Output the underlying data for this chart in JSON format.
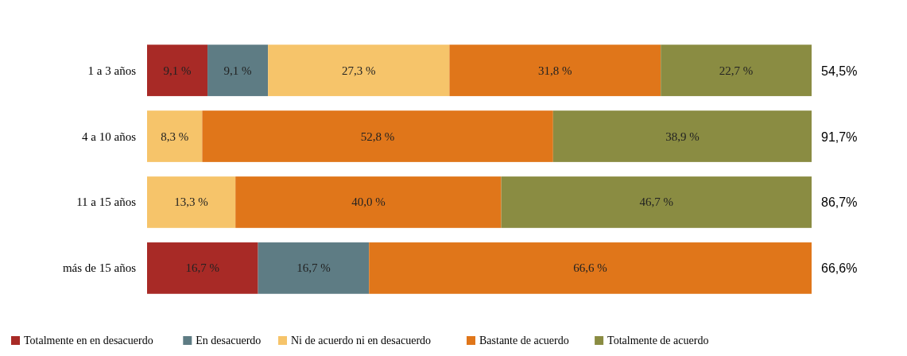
{
  "chart_data": {
    "type": "bar",
    "orientation": "horizontal",
    "stacked": true,
    "categories": [
      "1 a 3 años",
      "4 a 10 años",
      "11 a 15 años",
      "más de 15 años"
    ],
    "series": [
      {
        "name": "Totalmente en en desacuerdo",
        "color": "#a82a26",
        "values": [
          9.1,
          null,
          null,
          16.7
        ],
        "value_labels": [
          "9,1 %",
          null,
          null,
          "16,7 %"
        ]
      },
      {
        "name": "En desacuerdo",
        "color": "#5e7c84",
        "values": [
          9.1,
          null,
          null,
          16.7
        ],
        "value_labels": [
          "9,1 %",
          null,
          null,
          "16,7 %"
        ]
      },
      {
        "name": "Ni de acuerdo ni en desacuerdo",
        "color": "#f6c46a",
        "values": [
          27.3,
          8.3,
          13.3,
          null
        ],
        "value_labels": [
          "27,3 %",
          "8,3 %",
          "13,3 %",
          null
        ]
      },
      {
        "name": "Bastante de acuerdo",
        "color": "#e0761a",
        "values": [
          31.8,
          52.8,
          40.0,
          66.6
        ],
        "value_labels": [
          "31,8 %",
          "52,8 %",
          "40,0 %",
          "66,6 %"
        ]
      },
      {
        "name": "Totalmente de acuerdo",
        "color": "#8a8c42",
        "values": [
          22.7,
          38.9,
          46.7,
          null
        ],
        "value_labels": [
          "22,7 %",
          "38,9 %",
          "46,7 %",
          null
        ]
      }
    ],
    "annotations": [
      "54,5%",
      "91,7%",
      "86,7%",
      "66,6%"
    ],
    "legend": "bottom"
  }
}
